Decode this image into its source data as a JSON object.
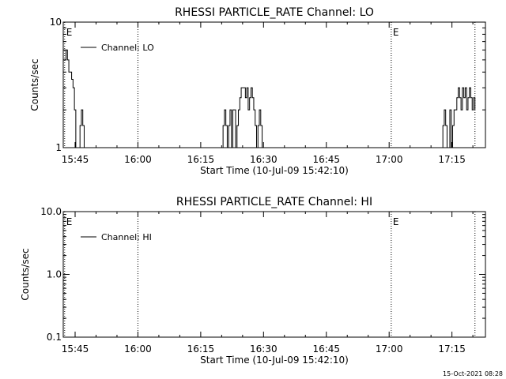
{
  "footer": {
    "stamp": "15-Oct-2021 08:28"
  },
  "chart_data": [
    {
      "type": "line",
      "title": "RHESSI PARTICLE_RATE Channel: LO",
      "xlabel": "Start Time (10-Jul-09 15:42:10)",
      "ylabel": "Counts/sec",
      "y_scale": "log",
      "ylim": [
        1,
        10
      ],
      "xlim": [
        "15:42:10",
        "17:23:00"
      ],
      "x_ticks": [
        "15:45",
        "16:00",
        "16:15",
        "16:30",
        "16:45",
        "17:00",
        "17:15"
      ],
      "y_ticks": [
        "1",
        "10"
      ],
      "legend": {
        "placement": "top-left",
        "entries": [
          "Channel: LO"
        ]
      },
      "markers": [
        {
          "time": "15:42:30",
          "label": "E"
        },
        {
          "time": "16:00:00",
          "label": ""
        },
        {
          "time": "17:00:30",
          "label": "E"
        },
        {
          "time": "17:20:30",
          "label": ""
        }
      ],
      "series": [
        {
          "name": "Channel: LO",
          "x": [
            "15:42:30",
            "15:42:50",
            "15:43:10",
            "15:43:30",
            "15:43:50",
            "15:44:10",
            "15:44:30",
            "15:44:50",
            "15:45:10",
            "15:45:30",
            "15:45:50",
            "15:46:10",
            "15:46:30",
            "15:46:50",
            "15:47:10",
            "15:47:30",
            "16:20:00",
            "16:20:20",
            "16:20:40",
            "16:21:00",
            "16:21:20",
            "16:21:40",
            "16:22:00",
            "16:22:20",
            "16:22:40",
            "16:23:00",
            "16:23:20",
            "16:23:40",
            "16:24:00",
            "16:24:20",
            "16:24:40",
            "16:25:00",
            "16:25:20",
            "16:25:40",
            "16:26:00",
            "16:26:20",
            "16:26:40",
            "16:27:00",
            "16:27:20",
            "16:27:40",
            "16:28:00",
            "16:28:20",
            "16:28:40",
            "16:29:00",
            "16:29:20",
            "16:29:40",
            "17:12:30",
            "17:12:50",
            "17:13:10",
            "17:13:30",
            "17:13:50",
            "17:14:10",
            "17:14:30",
            "17:14:50",
            "17:15:10",
            "17:15:30",
            "17:15:50",
            "17:16:10",
            "17:16:30",
            "17:16:50",
            "17:17:10",
            "17:17:30",
            "17:17:50",
            "17:18:10",
            "17:18:30",
            "17:18:50",
            "17:19:10",
            "17:19:30",
            "17:19:50",
            "17:20:10",
            "17:20:30"
          ],
          "values": [
            5,
            6,
            5,
            4,
            4,
            3.5,
            3,
            2,
            1,
            1,
            1,
            1.5,
            2,
            1.5,
            1,
            1,
            1,
            1.5,
            2,
            1.5,
            1,
            1.5,
            2,
            1,
            2,
            2,
            1,
            1.5,
            2,
            2.5,
            3,
            3,
            3,
            2.5,
            3,
            2,
            2.5,
            3,
            2.5,
            2,
            1.5,
            1,
            1.5,
            2,
            1.5,
            1,
            1,
            1.5,
            2,
            1.5,
            1,
            1,
            2,
            1,
            1.5,
            2,
            2,
            2.5,
            3,
            2.5,
            2,
            3,
            2.5,
            3,
            2,
            2.5,
            3,
            2.5,
            2,
            2.5,
            2
          ]
        }
      ]
    },
    {
      "type": "line",
      "title": "RHESSI PARTICLE_RATE Channel: HI",
      "xlabel": "Start Time (10-Jul-09 15:42:10)",
      "ylabel": "Counts/sec",
      "y_scale": "log",
      "ylim": [
        0.1,
        10
      ],
      "xlim": [
        "15:42:10",
        "17:23:00"
      ],
      "x_ticks": [
        "15:45",
        "16:00",
        "16:15",
        "16:30",
        "16:45",
        "17:00",
        "17:15"
      ],
      "y_ticks": [
        "0.1",
        "1.0",
        "10.0"
      ],
      "legend": {
        "placement": "top-left",
        "entries": [
          "Channel: HI"
        ]
      },
      "markers": [
        {
          "time": "15:42:30",
          "label": "E"
        },
        {
          "time": "16:00:00",
          "label": ""
        },
        {
          "time": "17:00:30",
          "label": "E"
        },
        {
          "time": "17:20:30",
          "label": ""
        }
      ],
      "series": [
        {
          "name": "Channel: HI",
          "x": [],
          "values": []
        }
      ]
    }
  ]
}
